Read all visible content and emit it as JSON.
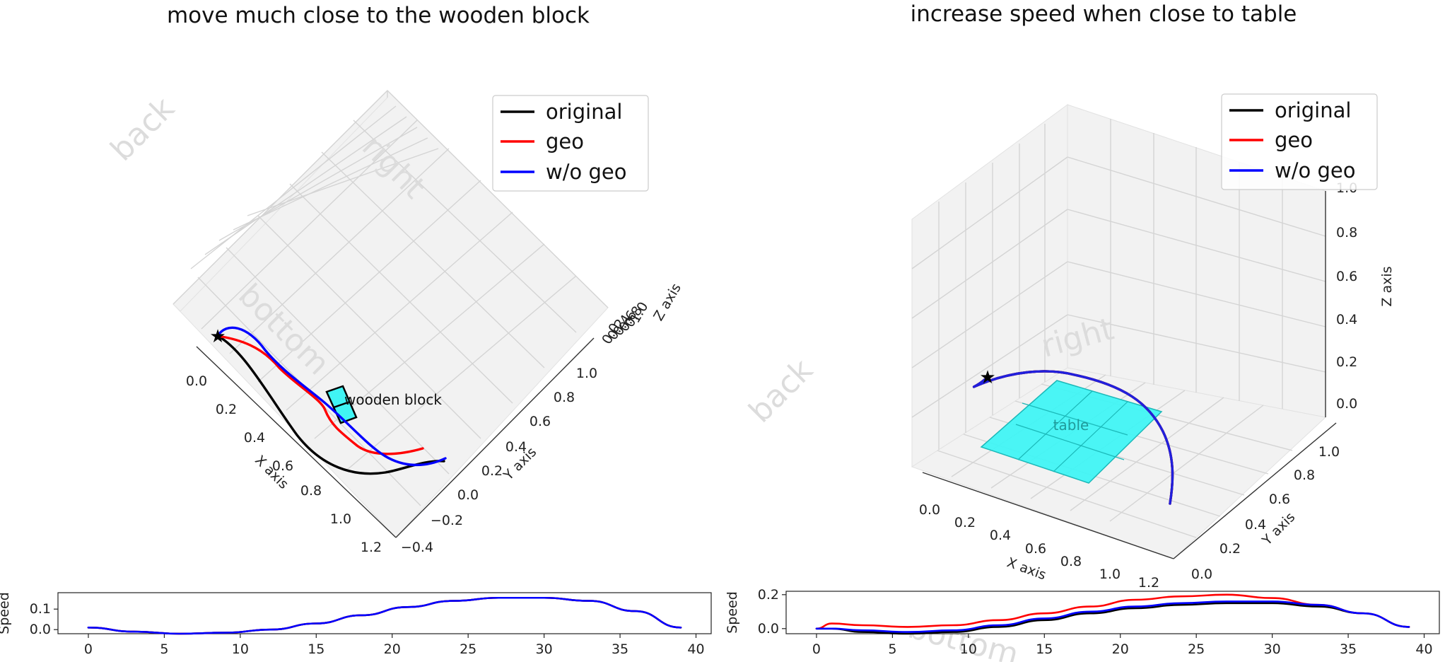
{
  "colors": {
    "original": "#000000",
    "geo": "#ff0000",
    "w/o geo": "#0000ff",
    "obstacle": "#40f4f4"
  },
  "chart_data": [
    {
      "type": "line",
      "projection": "3d",
      "title": "move much close to the wooden block",
      "xlabel": "X axis",
      "ylabel": "Y axis",
      "zlabel": "Z axis",
      "xticks": [
        "0.0",
        "0.2",
        "0.4",
        "0.6",
        "0.8",
        "1.0",
        "1.2"
      ],
      "yticks": [
        "−0.4",
        "−0.2",
        "0.0",
        "0.2",
        "0.4",
        "0.6",
        "0.8",
        "1.0"
      ],
      "zticks": [
        "0.0",
        "0.2",
        "0.4",
        "0.6",
        "0.8",
        "1.0"
      ],
      "legend": {
        "position": "top-right",
        "entries": [
          "original",
          "geo",
          "w/o geo"
        ]
      },
      "pane_labels": [
        "back",
        "right",
        "bottom"
      ],
      "annotation": "wooden block",
      "start_marker": [
        0.0,
        0.0,
        0.5
      ],
      "series": [
        {
          "name": "original",
          "x": [
            0.0,
            0.15,
            0.3,
            0.45,
            0.6,
            0.75,
            0.9,
            1.0
          ],
          "y": [
            0.0,
            -0.1,
            -0.2,
            -0.25,
            -0.22,
            -0.12,
            0.05,
            0.15
          ],
          "z": [
            0.5,
            0.5,
            0.5,
            0.5,
            0.5,
            0.5,
            0.5,
            0.5
          ]
        },
        {
          "name": "geo",
          "x": [
            0.0,
            0.15,
            0.3,
            0.45,
            0.55,
            0.65,
            0.8,
            0.95
          ],
          "y": [
            0.0,
            -0.02,
            0.0,
            0.05,
            0.05,
            0.1,
            0.2,
            0.35
          ],
          "z": [
            0.5,
            0.5,
            0.5,
            0.5,
            0.5,
            0.5,
            0.5,
            0.5
          ]
        },
        {
          "name": "w/o geo",
          "x": [
            0.0,
            0.15,
            0.3,
            0.45,
            0.6,
            0.75,
            0.9,
            1.0
          ],
          "y": [
            0.0,
            0.0,
            -0.02,
            0.05,
            0.05,
            0.05,
            0.12,
            0.3
          ],
          "z": [
            0.5,
            0.5,
            0.5,
            0.5,
            0.5,
            0.5,
            0.5,
            0.5
          ]
        }
      ]
    },
    {
      "type": "line",
      "projection": "3d",
      "title": "increase speed when close to table",
      "xlabel": "X axis",
      "ylabel": "Y axis",
      "zlabel": "Z axis",
      "xticks": [
        "0.0",
        "0.2",
        "0.4",
        "0.6",
        "0.8",
        "1.0",
        "1.2"
      ],
      "yticks": [
        "0.0",
        "0.2",
        "0.4",
        "0.6",
        "0.8",
        "1.0"
      ],
      "zticks": [
        "0.0",
        "0.2",
        "0.4",
        "0.6",
        "0.8",
        "1.0"
      ],
      "legend": {
        "position": "top-right",
        "entries": [
          "original",
          "geo",
          "w/o geo"
        ]
      },
      "pane_labels": [
        "back",
        "right",
        "bottom"
      ],
      "annotation": "table",
      "start_marker": [
        0.0,
        0.9,
        0.2
      ],
      "series": [
        {
          "name": "original",
          "x": [
            0.0,
            0.2,
            0.5,
            0.8,
            1.0,
            1.1
          ],
          "y": [
            0.9,
            0.85,
            0.8,
            0.6,
            0.3,
            0.1
          ],
          "z": [
            0.2,
            0.22,
            0.2,
            0.12,
            0.02,
            -0.1
          ]
        },
        {
          "name": "geo",
          "x": [
            0.0,
            0.2,
            0.5,
            0.8,
            1.0,
            1.1
          ],
          "y": [
            0.9,
            0.85,
            0.8,
            0.6,
            0.3,
            0.1
          ],
          "z": [
            0.2,
            0.22,
            0.2,
            0.12,
            0.02,
            -0.1
          ]
        },
        {
          "name": "w/o geo",
          "x": [
            0.0,
            0.2,
            0.5,
            0.8,
            1.0,
            1.1
          ],
          "y": [
            0.9,
            0.85,
            0.8,
            0.6,
            0.3,
            0.1
          ],
          "z": [
            0.2,
            0.22,
            0.2,
            0.12,
            0.02,
            -0.1
          ]
        }
      ]
    },
    {
      "type": "line",
      "ylabel": "Speed",
      "xlim": [
        -2,
        41
      ],
      "ylim": [
        -0.02,
        0.18
      ],
      "xticks": [
        0,
        5,
        10,
        15,
        20,
        25,
        30,
        35,
        40
      ],
      "yticks": [
        0.0,
        0.1
      ],
      "ytick_labels": [
        "0.0",
        "0.1"
      ],
      "series": [
        {
          "name": "original",
          "x": [
            0,
            3,
            6,
            9,
            12,
            15,
            18,
            21,
            24,
            27,
            30,
            33,
            36,
            39
          ],
          "y": [
            0.01,
            -0.01,
            -0.02,
            -0.015,
            0.0,
            0.03,
            0.07,
            0.11,
            0.14,
            0.155,
            0.155,
            0.14,
            0.09,
            0.01
          ]
        },
        {
          "name": "geo",
          "x": [
            0,
            3,
            6,
            9,
            12,
            15,
            18,
            21,
            24,
            27,
            30,
            33,
            36,
            39
          ],
          "y": [
            0.01,
            -0.01,
            -0.02,
            -0.015,
            0.0,
            0.03,
            0.07,
            0.11,
            0.14,
            0.155,
            0.155,
            0.14,
            0.09,
            0.01
          ]
        },
        {
          "name": "w/o geo",
          "x": [
            0,
            3,
            6,
            9,
            12,
            15,
            18,
            21,
            24,
            27,
            30,
            33,
            36,
            39
          ],
          "y": [
            0.01,
            -0.01,
            -0.02,
            -0.015,
            0.0,
            0.03,
            0.07,
            0.11,
            0.14,
            0.155,
            0.155,
            0.14,
            0.09,
            0.01
          ]
        }
      ]
    },
    {
      "type": "line",
      "ylabel": "Speed",
      "xlim": [
        -2,
        41
      ],
      "ylim": [
        -0.03,
        0.22
      ],
      "xticks": [
        0,
        5,
        10,
        15,
        20,
        25,
        30,
        35,
        40
      ],
      "yticks": [
        0.0,
        0.2
      ],
      "ytick_labels": [
        "0.0",
        "0.2"
      ],
      "pane_labels": [
        "bottom"
      ],
      "series": [
        {
          "name": "original",
          "x": [
            0,
            1,
            3,
            6,
            9,
            12,
            15,
            18,
            21,
            24,
            27,
            30,
            33,
            36,
            39
          ],
          "y": [
            0.0,
            0.0,
            -0.02,
            -0.03,
            -0.02,
            0.01,
            0.05,
            0.09,
            0.12,
            0.14,
            0.15,
            0.15,
            0.13,
            0.09,
            0.01
          ]
        },
        {
          "name": "geo",
          "x": [
            0,
            1,
            3,
            6,
            9,
            12,
            15,
            18,
            21,
            24,
            27,
            30,
            33,
            36,
            39
          ],
          "y": [
            0.0,
            0.03,
            0.02,
            0.01,
            0.02,
            0.05,
            0.09,
            0.13,
            0.17,
            0.19,
            0.2,
            0.18,
            0.14,
            0.09,
            0.01
          ]
        },
        {
          "name": "w/o geo",
          "x": [
            0,
            1,
            3,
            6,
            9,
            12,
            15,
            18,
            21,
            24,
            27,
            30,
            33,
            36,
            39
          ],
          "y": [
            0.0,
            0.0,
            -0.01,
            -0.02,
            -0.01,
            0.02,
            0.06,
            0.1,
            0.13,
            0.15,
            0.16,
            0.16,
            0.14,
            0.09,
            0.01
          ]
        }
      ]
    }
  ]
}
